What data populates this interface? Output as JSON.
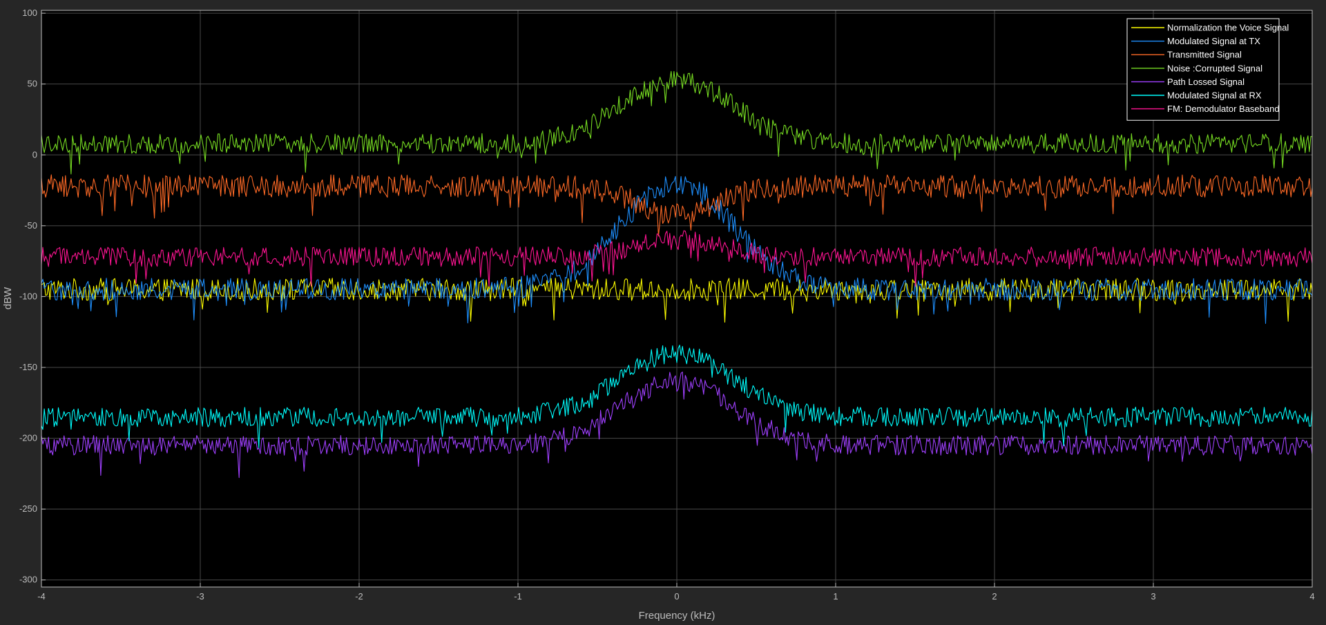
{
  "chart_data": {
    "type": "line",
    "xlabel": "Frequency (kHz)",
    "ylabel": "dBW",
    "xlim": [
      -4,
      4
    ],
    "ylim": [
      -305,
      102
    ],
    "xticks": [
      -4,
      -3,
      -2,
      -1,
      0,
      1,
      2,
      3,
      4
    ],
    "yticks": [
      100,
      50,
      0,
      -50,
      -100,
      -150,
      -200,
      -250,
      -300
    ],
    "grid": true,
    "legend_position": "top-right",
    "background": "#000000",
    "series": [
      {
        "name": "Normalization the Voice Signal",
        "color": "#ffff00",
        "baseline": -95,
        "peak": 0,
        "peak_width_khz": 0.5,
        "noise_amplitude": 8
      },
      {
        "name": "Modulated Signal at TX",
        "color": "#1e90ff",
        "baseline": -95,
        "peak": 75,
        "peak_width_khz": 0.5,
        "noise_amplitude": 8
      },
      {
        "name": "Transmitted Signal",
        "color": "#ff6a26",
        "baseline": -22,
        "peak": 0,
        "peak_width_khz": 0.5,
        "noise_amplitude": 8,
        "center_dip": -20
      },
      {
        "name": "Noise :Corrupted Signal",
        "color": "#77dd22",
        "baseline": 8,
        "peak": 45,
        "peak_width_khz": 0.5,
        "noise_amplitude": 7
      },
      {
        "name": "Path Lossed Signal",
        "color": "#a040ff",
        "baseline": -205,
        "peak": 45,
        "peak_width_khz": 0.5,
        "noise_amplitude": 7
      },
      {
        "name": "Modulated  Signal at RX",
        "color": "#00ffff",
        "baseline": -185,
        "peak": 45,
        "peak_width_khz": 0.5,
        "noise_amplitude": 7
      },
      {
        "name": "FM: Demodulator Baseband",
        "color": "#ff1493",
        "baseline": -72,
        "peak": 12,
        "peak_width_khz": 0.4,
        "noise_amplitude": 7
      }
    ]
  }
}
